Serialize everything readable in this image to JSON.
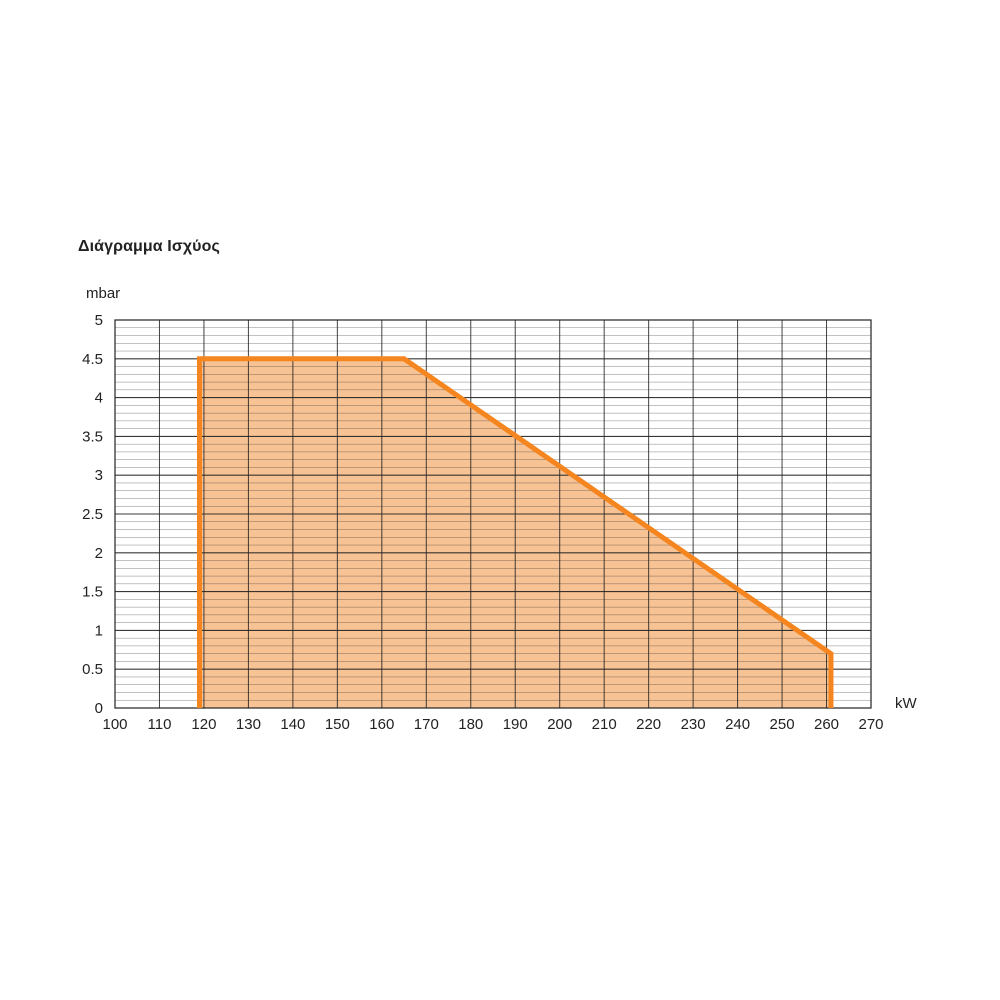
{
  "chart_data": {
    "type": "area",
    "title": "Διάγραμμα Ισχύος",
    "ylabel": "mbar",
    "xlabel": "kW",
    "xlim": [
      100,
      270
    ],
    "ylim": [
      0,
      5
    ],
    "x_ticks": [
      "100",
      "110",
      "120",
      "130",
      "140",
      "150",
      "160",
      "170",
      "180",
      "190",
      "200",
      "210",
      "220",
      "230",
      "240",
      "250",
      "260",
      "270"
    ],
    "y_ticks": [
      "0",
      "0.5",
      "1",
      "1.5",
      "2",
      "2.5",
      "3",
      "3.5",
      "4",
      "4.5",
      "5"
    ],
    "grid": true,
    "series": [
      {
        "x": [
          119,
          119,
          165,
          261,
          261
        ],
        "y": [
          0,
          4.5,
          4.5,
          0.7,
          0
        ]
      }
    ],
    "colors": {
      "fill": "#f6b781",
      "line": "#f5861f",
      "grid": "#222222"
    }
  }
}
